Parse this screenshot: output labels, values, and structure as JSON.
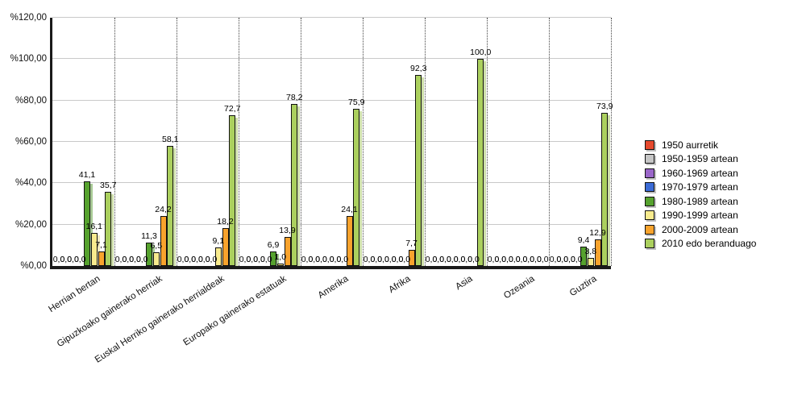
{
  "chart_data": {
    "type": "bar",
    "title": "",
    "xlabel": "",
    "ylabel": "",
    "ylim": [
      0,
      120
    ],
    "grid": true,
    "legend_position": "right",
    "decimal_separator": ",",
    "y_ticks": [
      {
        "value": 0,
        "label": "%0,00"
      },
      {
        "value": 20,
        "label": "%20,00"
      },
      {
        "value": 40,
        "label": "%40,00"
      },
      {
        "value": 60,
        "label": "%60,00"
      },
      {
        "value": 80,
        "label": "%80,00"
      },
      {
        "value": 100,
        "label": "%100,00"
      },
      {
        "value": 120,
        "label": "%120,00"
      }
    ],
    "categories": [
      "Herrian bertan",
      "Gipuzkoako gainerako herriak",
      "Euskal Herriko gainerako herrialdeak",
      "Europako gainerako estatuak",
      "Amerika",
      "Afrika",
      "Asia",
      "Ozeania",
      "Guztira"
    ],
    "series": [
      {
        "name": "1950 aurretik",
        "color": "#e64a2e",
        "values": [
          0,
          0,
          0,
          0,
          0,
          0,
          0,
          0,
          0
        ]
      },
      {
        "name": "1950-1959 artean",
        "color": "#c6c6c6",
        "values": [
          0,
          0,
          0,
          0,
          0,
          0,
          0,
          0,
          0
        ]
      },
      {
        "name": "1960-1969 artean",
        "color": "#9a66c9",
        "values": [
          0,
          0,
          0,
          0,
          0,
          0,
          0,
          0,
          0
        ]
      },
      {
        "name": "1970-1979 artean",
        "color": "#3b6bd6",
        "values": [
          0,
          0,
          0,
          0,
          0,
          0,
          0,
          0,
          0
        ]
      },
      {
        "name": "1980-1989 artean",
        "color": "#56a22e",
        "values": [
          41.1,
          11.3,
          0,
          6.9,
          0,
          0,
          0,
          0,
          9.4
        ]
      },
      {
        "name": "1990-1999 artean",
        "color": "#f8eb8e",
        "values": [
          16.1,
          6.5,
          9.1,
          1.0,
          0,
          0,
          0,
          0,
          3.8
        ]
      },
      {
        "name": "2000-2009 artean",
        "color": "#f8a32d",
        "values": [
          7.1,
          24.2,
          18.2,
          13.9,
          24.1,
          7.7,
          0,
          0,
          12.9
        ]
      },
      {
        "name": "2010 edo beranduago",
        "color": "#abd05e",
        "values": [
          35.7,
          58.1,
          72.7,
          78.2,
          75.9,
          92.3,
          100.0,
          0,
          73.9
        ]
      }
    ]
  }
}
